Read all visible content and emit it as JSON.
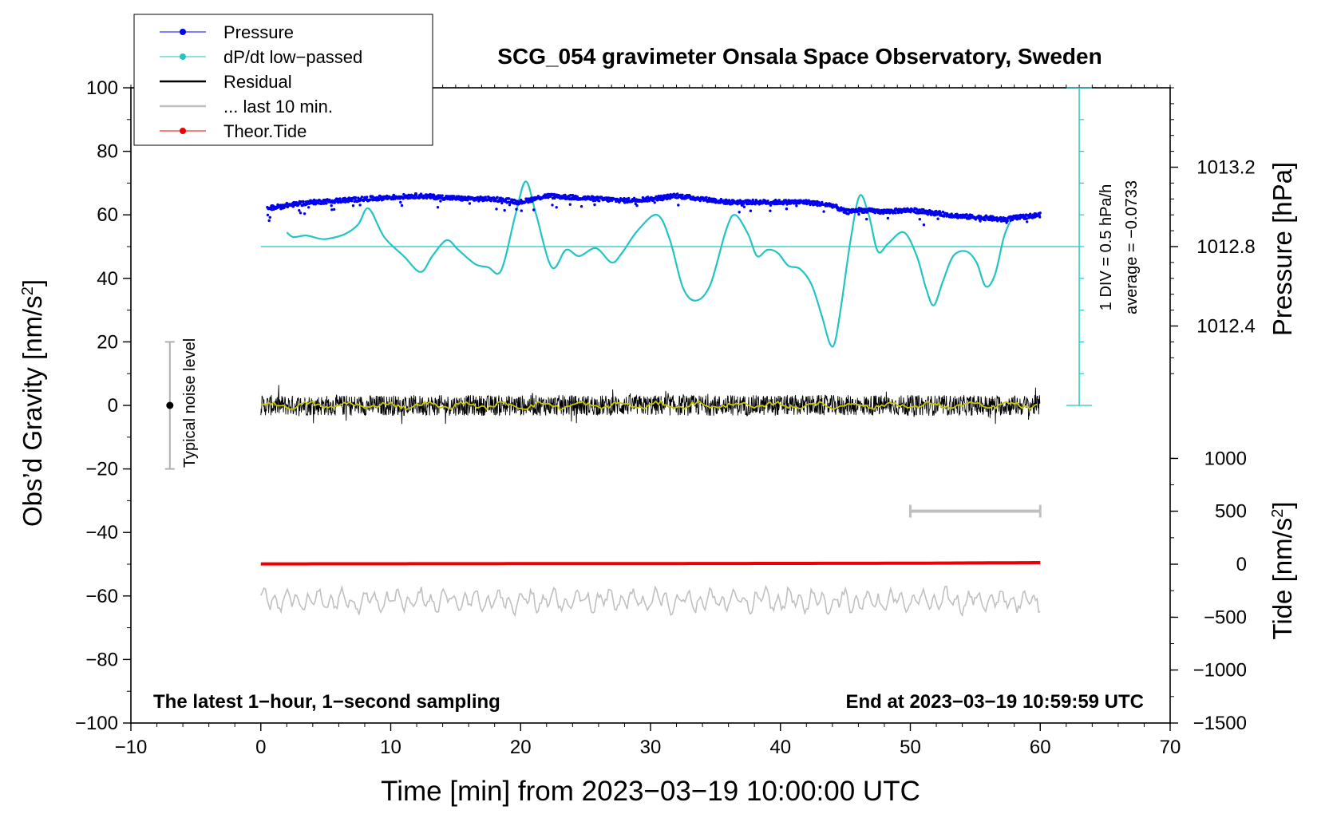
{
  "chart_data": {
    "type": "line",
    "title": "SCG_054 gravimeter Onsala Space Observatory, Sweden",
    "xlabel": "Time [min] from 2023−03−19 10:00:00 UTC",
    "ylabel": "Obs’d Gravity [nm/s²]",
    "ylabel_parts": {
      "base": "Obs’d Gravity [nm/s",
      "sup": "2",
      "end": "]"
    },
    "xlim": [
      -10,
      70
    ],
    "ylim": [
      -100,
      100
    ],
    "x_ticks": [
      -10,
      0,
      10,
      20,
      30,
      40,
      50,
      60,
      70
    ],
    "x_tick_labels": [
      "−10",
      "0",
      "10",
      "20",
      "30",
      "40",
      "50",
      "60",
      "70"
    ],
    "y_ticks": [
      -100,
      -80,
      -60,
      -40,
      -20,
      0,
      20,
      40,
      60,
      80,
      100
    ],
    "y_tick_labels": [
      "−100",
      "−80",
      "−60",
      "−40",
      "−20",
      "0",
      "20",
      "40",
      "60",
      "80",
      "100"
    ],
    "right_axis_pressure": {
      "label": "Pressure [hPa]",
      "ticks": [
        {
          "value": 1013.2,
          "label": "1013.2",
          "at_gravity": 75
        },
        {
          "value": 1012.8,
          "label": "1012.8",
          "at_gravity": 50
        },
        {
          "value": 1012.4,
          "label": "1012.4",
          "at_gravity": 25
        }
      ]
    },
    "right_axis_tide": {
      "label": "Tide [nm/s²]",
      "label_parts": {
        "base": "Tide [nm/s",
        "sup": "2",
        "end": "]"
      },
      "ticks": [
        {
          "value": 1000,
          "label": "1000",
          "at_gravity": -16.7
        },
        {
          "value": 500,
          "label": "500",
          "at_gravity": -33.3
        },
        {
          "value": 0,
          "label": "0",
          "at_gravity": -50
        },
        {
          "value": -500,
          "label": "−500",
          "at_gravity": -66.7
        },
        {
          "value": -1000,
          "label": "−1000",
          "at_gravity": -83.3
        },
        {
          "value": -1500,
          "label": "−1500",
          "at_gravity": -100
        }
      ]
    },
    "dpdt_scale": {
      "label_div": "1 DIV = 0.5 hPa/h",
      "label_avg": "average = −0.0733",
      "x": 63,
      "y_range": [
        0,
        100
      ],
      "tick_step": 10,
      "baseline_value": 50
    },
    "legend": {
      "position": "top-left",
      "entries": [
        {
          "label": "Pressure",
          "color": "#0000ee",
          "marker": true
        },
        {
          "label": "dP/dt low−passed",
          "color": "#22c4c4",
          "marker": true
        },
        {
          "label": "Residual",
          "color": "#000000",
          "marker": false
        },
        {
          "label": "... last 10 min.",
          "color": "#c0c0c0",
          "marker": false
        },
        {
          "label": "Theor.Tide",
          "color": "#ee0000",
          "marker": true
        }
      ]
    },
    "noise_bar": {
      "label": "Typical noise level",
      "x": -7,
      "center": 0,
      "range": [
        -20,
        20
      ]
    },
    "last10_bar": {
      "x_range": [
        50,
        60
      ],
      "y": -33.3
    },
    "annotations": {
      "bottom_left": "The latest 1−hour, 1−second sampling",
      "bottom_right": "End at 2023−03−19 10:59:59 UTC"
    },
    "series": [
      {
        "name": "Pressure",
        "color": "#0000ee",
        "x": [
          0.5,
          2,
          4,
          6,
          8,
          10,
          12,
          14,
          16,
          18,
          20,
          22,
          24,
          26,
          28,
          30,
          32,
          34,
          36,
          38,
          40,
          42,
          44,
          45,
          46,
          48,
          50,
          52,
          54,
          56,
          57,
          58,
          60
        ],
        "values": [
          62,
          63,
          64,
          64.5,
          65,
          65.5,
          66,
          65.5,
          65,
          65,
          64,
          66,
          65.5,
          65,
          64.5,
          65,
          66,
          65,
          64,
          64,
          64,
          64,
          63,
          61,
          61.5,
          61,
          61.5,
          60.5,
          59.5,
          59,
          58.5,
          59,
          60
        ]
      },
      {
        "name": "dP/dt low-passed",
        "color": "#22c4c4",
        "x": [
          2,
          2.5,
          3.5,
          4.5,
          5.2,
          6.5,
          7.5,
          8.3,
          9.5,
          11,
          12.3,
          13.2,
          14.3,
          15.2,
          16.5,
          17.5,
          18.5,
          19.6,
          20.4,
          21.2,
          22.4,
          23.5,
          24.5,
          25.8,
          27,
          27.8,
          29,
          30.5,
          31.5,
          32.5,
          33.5,
          34.6,
          35.8,
          36.5,
          37.5,
          38.2,
          39,
          39.8,
          40.6,
          41.5,
          42.4,
          43.2,
          43.8,
          44.2,
          44.7,
          45.4,
          46.1,
          46.8,
          47.5,
          48.3,
          49.5,
          50.5,
          51.2,
          51.8,
          52.5,
          53.3,
          54.3,
          55.1,
          55.8,
          56.5,
          57.2,
          57.7
        ],
        "values": [
          54.5,
          53,
          53.5,
          52.5,
          52.5,
          54,
          57,
          62,
          53,
          47,
          42,
          47,
          52,
          49,
          44.5,
          43.5,
          42.5,
          60,
          70.5,
          60,
          43.5,
          49,
          47,
          49.5,
          45,
          48,
          55,
          60,
          52,
          37,
          33,
          38,
          55,
          60,
          54,
          47,
          49,
          48,
          44,
          43,
          38,
          28,
          19.5,
          20,
          32,
          52,
          66,
          60,
          48.5,
          51,
          54.5,
          47,
          37,
          31.5,
          39,
          47,
          48.5,
          45,
          37.5,
          41,
          53,
          58
        ]
      },
      {
        "name": "Residual",
        "color": "#000000",
        "x_range": [
          0,
          60
        ],
        "mean": 0,
        "amplitude_range": [
          -6,
          8
        ]
      },
      {
        "name": "... last 10 min.",
        "color": "#c0c0c0",
        "x_range": [
          0,
          60
        ],
        "mean": -61.5,
        "amplitude_range": [
          -68,
          -57
        ]
      },
      {
        "name": "Theor.Tide",
        "color": "#ee0000",
        "x": [
          0,
          30,
          50,
          60
        ],
        "values": [
          -49.9,
          -49.8,
          -49.7,
          -49.5
        ]
      }
    ]
  }
}
